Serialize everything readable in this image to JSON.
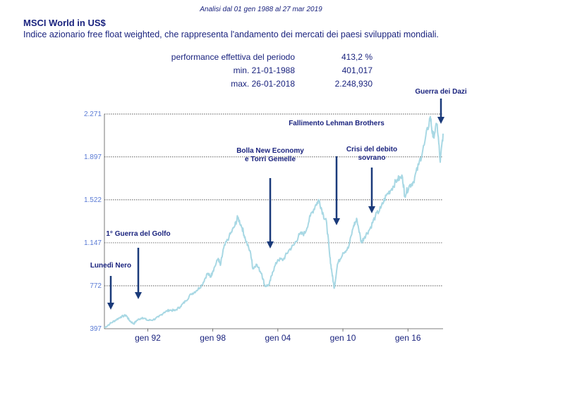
{
  "header": {
    "period": "Analisi dal 01 gen 1988 al 27 mar 2019",
    "title": "MSCI World in US$",
    "description": "Indice azionario free float weighted, che rappresenta l'andamento dei mercati dei paesi sviluppati mondiali."
  },
  "stats": [
    {
      "label": "performance effettiva del periodo",
      "value": "413,2 %"
    },
    {
      "label": "min. 21-01-1988",
      "value": "401,017"
    },
    {
      "label": "max. 26-01-2018",
      "value": "2.248,930"
    }
  ],
  "chart_data": {
    "type": "line",
    "xlim": [
      1988.0,
      2019.24
    ],
    "ylim": [
      397,
      2271
    ],
    "grid": true,
    "line_color": "#a8d8e4",
    "y_ticks": [
      {
        "value": 397,
        "label": "397"
      },
      {
        "value": 772,
        "label": "772"
      },
      {
        "value": 1147,
        "label": "1.147"
      },
      {
        "value": 1522,
        "label": "1.522"
      },
      {
        "value": 1897,
        "label": "1.897"
      },
      {
        "value": 2271,
        "label": "2.271"
      }
    ],
    "x_ticks": [
      {
        "value": 1992.0,
        "label": "gen 92"
      },
      {
        "value": 1998.0,
        "label": "gen 98"
      },
      {
        "value": 2004.0,
        "label": "gen 04"
      },
      {
        "value": 2010.0,
        "label": "gen 10"
      },
      {
        "value": 2016.0,
        "label": "gen 16"
      }
    ],
    "series": [
      {
        "x": [
          1988.0,
          1988.5,
          1989.0,
          1989.5,
          1990.0,
          1990.3,
          1990.7,
          1991.0,
          1991.5,
          1992.0,
          1992.5,
          1993.0,
          1993.5,
          1994.0,
          1994.5,
          1995.0,
          1995.5,
          1996.0,
          1996.5,
          1997.0,
          1997.5,
          1997.8,
          1998.0,
          1998.5,
          1998.7,
          1999.0,
          1999.5,
          2000.0,
          2000.3,
          2000.7,
          2001.0,
          2001.5,
          2001.7,
          2002.0,
          2002.5,
          2002.8,
          2003.2,
          2003.5,
          2004.0,
          2004.5,
          2005.0,
          2005.5,
          2006.0,
          2006.5,
          2007.0,
          2007.5,
          2007.8,
          2008.2,
          2008.5,
          2008.8,
          2009.0,
          2009.2,
          2009.5,
          2010.0,
          2010.5,
          2011.0,
          2011.3,
          2011.7,
          2012.0,
          2012.5,
          2013.0,
          2013.5,
          2014.0,
          2014.5,
          2015.0,
          2015.5,
          2015.7,
          2016.1,
          2016.5,
          2017.0,
          2017.5,
          2018.07,
          2018.3,
          2018.7,
          2018.98,
          2019.24
        ],
        "y": [
          405,
          440,
          470,
          500,
          515,
          470,
          440,
          470,
          495,
          470,
          475,
          500,
          540,
          560,
          555,
          590,
          640,
          700,
          730,
          780,
          880,
          850,
          900,
          1010,
          950,
          1100,
          1200,
          1290,
          1370,
          1280,
          1180,
          1050,
          920,
          960,
          880,
          770,
          780,
          890,
          1000,
          1000,
          1080,
          1130,
          1220,
          1230,
          1380,
          1480,
          1520,
          1390,
          1320,
          1020,
          880,
          750,
          960,
          1060,
          1100,
          1300,
          1350,
          1150,
          1200,
          1270,
          1380,
          1450,
          1560,
          1620,
          1700,
          1720,
          1560,
          1640,
          1680,
          1830,
          2000,
          2249,
          2070,
          2180,
          1850,
          2100
        ]
      }
    ],
    "annotations": [
      {
        "lines": [
          "Lunedì Nero"
        ],
        "x": 1988.4
      },
      {
        "lines": [
          "1° Guerra del Golfo"
        ],
        "x": 1990.6
      },
      {
        "lines": [
          "Bolla New Economy",
          "e Torri Gemelle"
        ],
        "x": 2003.0
      },
      {
        "lines": [
          "Fallimento Lehman Brothers"
        ],
        "x": 2008.5
      },
      {
        "lines": [
          "Crisi del debito",
          "sovrano"
        ],
        "x": 2011.3
      },
      {
        "lines": [
          "Guerra dei Dazi"
        ],
        "x": 2018.5
      }
    ]
  }
}
